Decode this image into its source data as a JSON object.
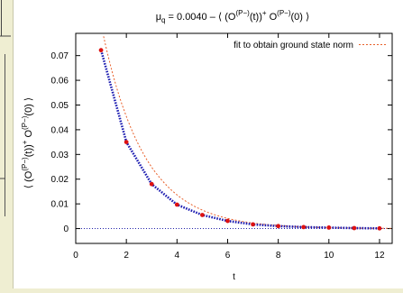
{
  "chart_data": {
    "type": "scatter",
    "title_main": "μ",
    "title_sub": "q",
    "title_rest": " = 0.0040  –  ⟨ (O",
    "title_sup1": "(P−)",
    "title_mid": "(t))",
    "title_sup2": "+",
    "title_mid2": " O",
    "title_sup3": "(P−)",
    "title_end": "(0) ⟩",
    "xlabel": "t",
    "ylabel": "⟨ (O^(P−)(t))^+ O^(P−)(0) ⟩",
    "ylabel_parts": [
      "⟨ (O",
      "(P−)",
      "(t))",
      "+",
      " O",
      "(P−)",
      "(0) ⟩"
    ],
    "xlim": [
      0,
      12.5
    ],
    "ylim": [
      -0.006,
      0.079
    ],
    "xticks": [
      0,
      2,
      4,
      6,
      8,
      10,
      12
    ],
    "yticks": [
      0,
      0.01,
      0.02,
      0.03,
      0.04,
      0.05,
      0.06,
      0.07
    ],
    "ytick_labels": [
      "0",
      "0.01",
      "0.02",
      "0.03",
      "0.04",
      "0.05",
      "0.06",
      "0.07"
    ],
    "legend_label": "fit to obtain ground state norm",
    "legend_position": "top-right",
    "data_points": {
      "x": [
        1,
        2,
        3,
        4,
        5,
        6,
        7,
        8,
        9,
        10,
        11,
        12
      ],
      "y": [
        0.0722,
        0.035,
        0.018,
        0.0097,
        0.0055,
        0.0031,
        0.0017,
        0.001,
        0.0006,
        0.0004,
        0.0002,
        0.0001
      ]
    },
    "fit_curve": {
      "amplitude": 0.1505,
      "decay": 0.6
    },
    "colors": {
      "points": "#dd1111",
      "connect": "#1a1ab0",
      "fit": "#e8602a",
      "zero_line": "#2222aa"
    }
  }
}
